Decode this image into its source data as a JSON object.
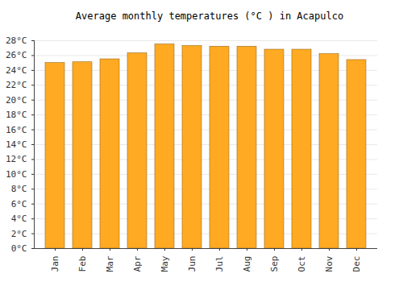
{
  "chart_data": {
    "type": "bar",
    "title": "Average monthly temperatures (°C ) in Acapulco",
    "categories": [
      "Jan",
      "Feb",
      "Mar",
      "Apr",
      "May",
      "Jun",
      "Jul",
      "Aug",
      "Sep",
      "Oct",
      "Nov",
      "Dec"
    ],
    "values": [
      25.0,
      25.1,
      25.5,
      26.3,
      27.5,
      27.3,
      27.2,
      27.2,
      26.8,
      26.8,
      26.2,
      25.4
    ],
    "color": "#ffaa22",
    "ylim": [
      0,
      28
    ],
    "yticks": [
      {
        "value": 0,
        "label": "0°C"
      },
      {
        "value": 2,
        "label": "2°C"
      },
      {
        "value": 4,
        "label": "4°C"
      },
      {
        "value": 6,
        "label": "6°C"
      },
      {
        "value": 8,
        "label": "8°C"
      },
      {
        "value": 10,
        "label": "10°C"
      },
      {
        "value": 12,
        "label": "12°C"
      },
      {
        "value": 14,
        "label": "14°C"
      },
      {
        "value": 16,
        "label": "16°C"
      },
      {
        "value": 18,
        "label": "18°C"
      },
      {
        "value": 20,
        "label": "20°C"
      },
      {
        "value": 22,
        "label": "22°C"
      },
      {
        "value": 24,
        "label": "24°C"
      },
      {
        "value": 26,
        "label": "26°C"
      },
      {
        "value": 28,
        "label": "28°C"
      }
    ],
    "grid": true
  }
}
